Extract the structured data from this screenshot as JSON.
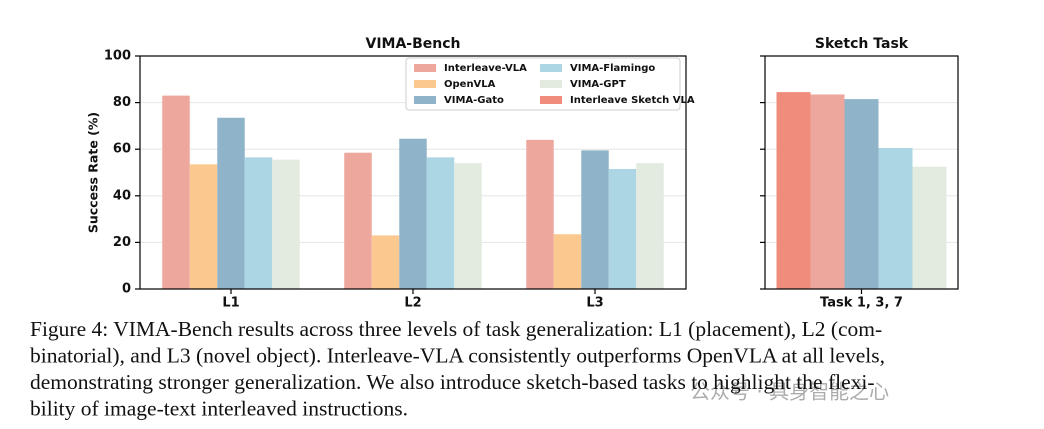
{
  "chart_data": [
    {
      "type": "bar",
      "title": "VIMA-Bench",
      "ylabel": "Success Rate (%)",
      "categories": [
        "L1",
        "L2",
        "L3"
      ],
      "series": [
        {
          "name": "Interleave-VLA",
          "color": "#eea79c",
          "values": [
            83,
            58.5,
            64
          ]
        },
        {
          "name": "OpenVLA",
          "color": "#fbc88f",
          "values": [
            53.5,
            23,
            23.5
          ]
        },
        {
          "name": "VIMA-Gato",
          "color": "#8fb3c9",
          "values": [
            73.5,
            64.5,
            59.5
          ]
        },
        {
          "name": "VIMA-Flamingo",
          "color": "#acd6e4",
          "values": [
            56.5,
            56.5,
            51.5
          ]
        },
        {
          "name": "VIMA-GPT",
          "color": "#e3ebe0",
          "values": [
            55.5,
            54,
            54
          ]
        },
        {
          "name": "Interleave Sketch VLA",
          "color": "#ef8c7b",
          "values": [
            null,
            null,
            null
          ]
        }
      ],
      "ylim": [
        0,
        100
      ],
      "yticks": [
        0,
        20,
        40,
        60,
        80,
        100
      ],
      "grid": true,
      "legend": "upper right"
    },
    {
      "type": "bar",
      "title": "Sketch Task",
      "categories": [
        "Task 1, 3, 7"
      ],
      "series": [
        {
          "color": "#ef8c7b",
          "values": [
            84.5
          ]
        },
        {
          "color": "#eea79c",
          "values": [
            83.5
          ]
        },
        {
          "color": "#8fb3c9",
          "values": [
            81.5
          ]
        },
        {
          "color": "#acd6e4",
          "values": [
            60.5
          ]
        },
        {
          "color": "#e3ebe0",
          "values": [
            52.5
          ]
        }
      ],
      "ylim": [
        0,
        100
      ],
      "yticks": [
        0,
        20,
        40,
        60,
        80,
        100
      ],
      "grid": true,
      "ytick_labels": false
    }
  ],
  "caption_lines": [
    "Figure 4: VIMA-Bench results across three levels of task generalization: L1 (placement), L2 (com-",
    "binatorial), and L3 (novel object). Interleave-VLA consistently outperforms OpenVLA at all levels,",
    "demonstrating stronger generalization. We also introduce sketch-based tasks to highlight the flexi-",
    "bility of image-text interleaved instructions."
  ],
  "watermark": "公众号 · 具身智能之心"
}
